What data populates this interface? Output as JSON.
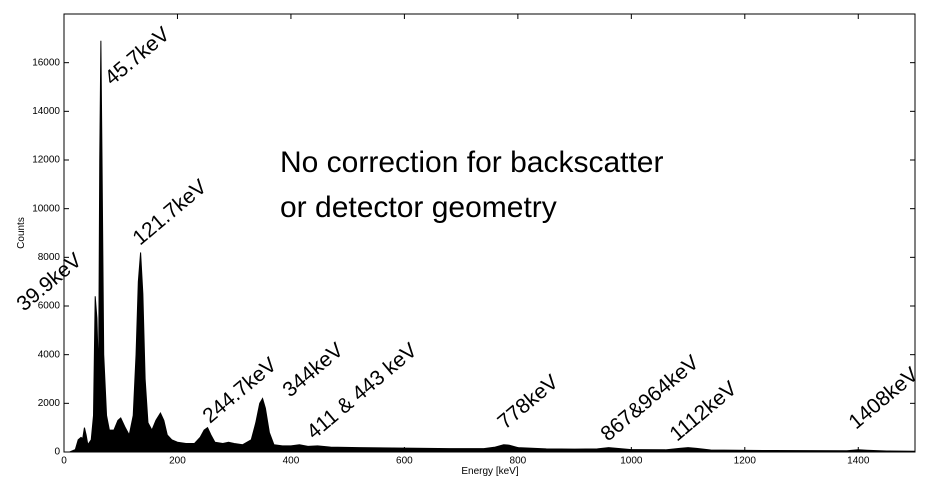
{
  "chart_data": {
    "type": "area",
    "xlabel": "Energy [keV]",
    "ylabel": "Counts",
    "note_lines": [
      "No correction for backscatter",
      "or detector geometry"
    ],
    "annotations": [
      "39.9keV",
      "45.7keV",
      "121.7keV",
      "244.7keV",
      "344keV",
      "411 & 443 keV",
      "778keV",
      "867&964keV",
      "1112keV",
      "1408keV"
    ],
    "color": "#000000",
    "xlim": [
      0,
      1500
    ],
    "ylim": [
      0,
      18000
    ],
    "xticks": [
      0,
      200,
      400,
      600,
      800,
      1000,
      1200,
      1400
    ],
    "yticks": [
      0,
      2000,
      4000,
      6000,
      8000,
      10000,
      12000,
      14000,
      16000
    ],
    "x": [
      0,
      10,
      20,
      25,
      30,
      33,
      36,
      39,
      42,
      48,
      52,
      55,
      58,
      61,
      63,
      65,
      67,
      70,
      75,
      80,
      88,
      95,
      100,
      108,
      115,
      122,
      127,
      131,
      135,
      139,
      143,
      148,
      155,
      162,
      170,
      176,
      182,
      190,
      200,
      215,
      230,
      240,
      247,
      253,
      259,
      266,
      280,
      290,
      300,
      315,
      330,
      338,
      345,
      350,
      355,
      362,
      370,
      385,
      400,
      415,
      430,
      447,
      470,
      520,
      600,
      680,
      740,
      760,
      775,
      785,
      800,
      850,
      900,
      940,
      960,
      975,
      1000,
      1060,
      1085,
      1100,
      1115,
      1140,
      1250,
      1380,
      1400,
      1415,
      1450,
      1500
    ],
    "values": [
      0,
      0,
      100,
      500,
      600,
      550,
      1000,
      700,
      300,
      500,
      1500,
      6400,
      5500,
      3000,
      12000,
      16900,
      12000,
      4000,
      1500,
      900,
      900,
      1300,
      1400,
      1000,
      700,
      1500,
      4000,
      7000,
      8200,
      6500,
      3000,
      1200,
      900,
      1300,
      1600,
      1300,
      700,
      500,
      400,
      350,
      350,
      600,
      900,
      1000,
      700,
      400,
      350,
      400,
      350,
      300,
      500,
      1200,
      2000,
      2200,
      1800,
      800,
      300,
      250,
      250,
      300,
      230,
      250,
      200,
      180,
      160,
      140,
      140,
      200,
      300,
      280,
      180,
      130,
      120,
      130,
      180,
      150,
      100,
      90,
      150,
      180,
      150,
      80,
      60,
      50,
      90,
      70,
      40,
      30
    ]
  }
}
